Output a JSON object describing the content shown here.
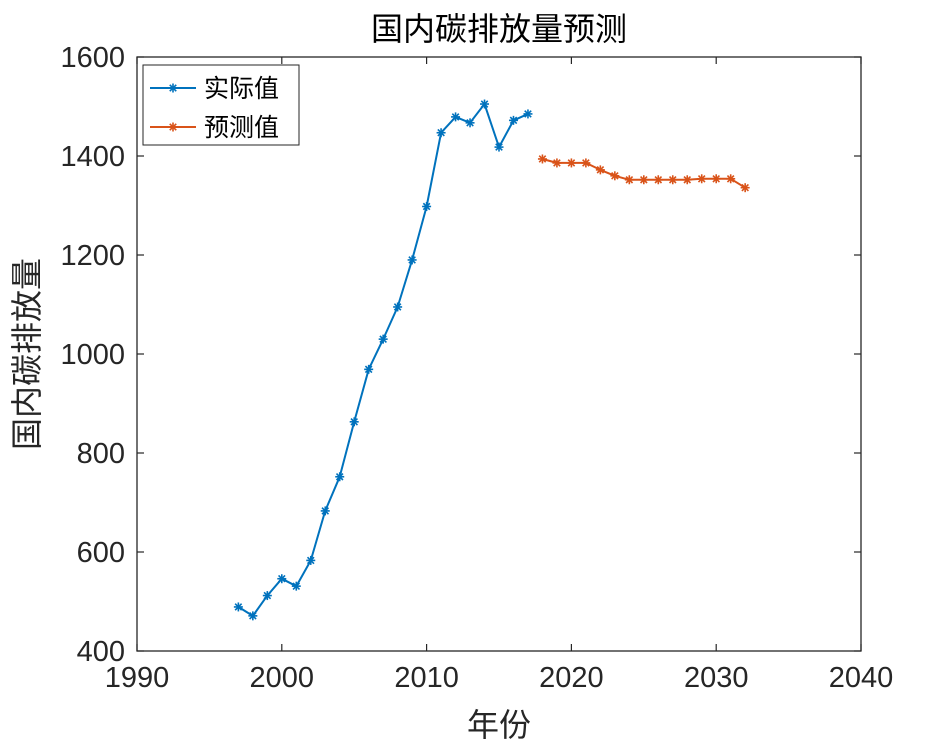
{
  "chart_data": {
    "type": "line",
    "title": "国内碳排放量预测",
    "xlabel": "年份",
    "ylabel": "国内碳排放量",
    "xlim": [
      1990,
      2040
    ],
    "ylim": [
      400,
      1600
    ],
    "xticks": [
      1990,
      2000,
      2010,
      2020,
      2030,
      2040
    ],
    "yticks": [
      400,
      600,
      800,
      1000,
      1200,
      1400,
      1600
    ],
    "xtick_labels": [
      "1990",
      "2000",
      "2010",
      "2020",
      "2030",
      "2040"
    ],
    "ytick_labels": [
      "400",
      "600",
      "800",
      "1000",
      "1200",
      "1400",
      "1600"
    ],
    "grid": false,
    "legend_position": "top-left",
    "series": [
      {
        "name": "实际值",
        "color": "#0072BD",
        "marker": "asterisk",
        "x": [
          1997,
          1998,
          1999,
          2000,
          2001,
          2002,
          2003,
          2004,
          2005,
          2006,
          2007,
          2008,
          2009,
          2010,
          2011,
          2012,
          2013,
          2014,
          2015,
          2016,
          2017
        ],
        "y": [
          489,
          471,
          512,
          546,
          531,
          583,
          683,
          752,
          863,
          969,
          1030,
          1095,
          1190,
          1298,
          1447,
          1479,
          1467,
          1505,
          1418,
          1472,
          1485
        ]
      },
      {
        "name": "预测值",
        "color": "#D95319",
        "marker": "asterisk",
        "x": [
          2018,
          2019,
          2020,
          2021,
          2022,
          2023,
          2024,
          2025,
          2026,
          2027,
          2028,
          2029,
          2030,
          2031,
          2032
        ],
        "y": [
          1394,
          1386,
          1386,
          1386,
          1372,
          1360,
          1352,
          1352,
          1352,
          1352,
          1352,
          1354,
          1354,
          1354,
          1336
        ]
      }
    ]
  }
}
